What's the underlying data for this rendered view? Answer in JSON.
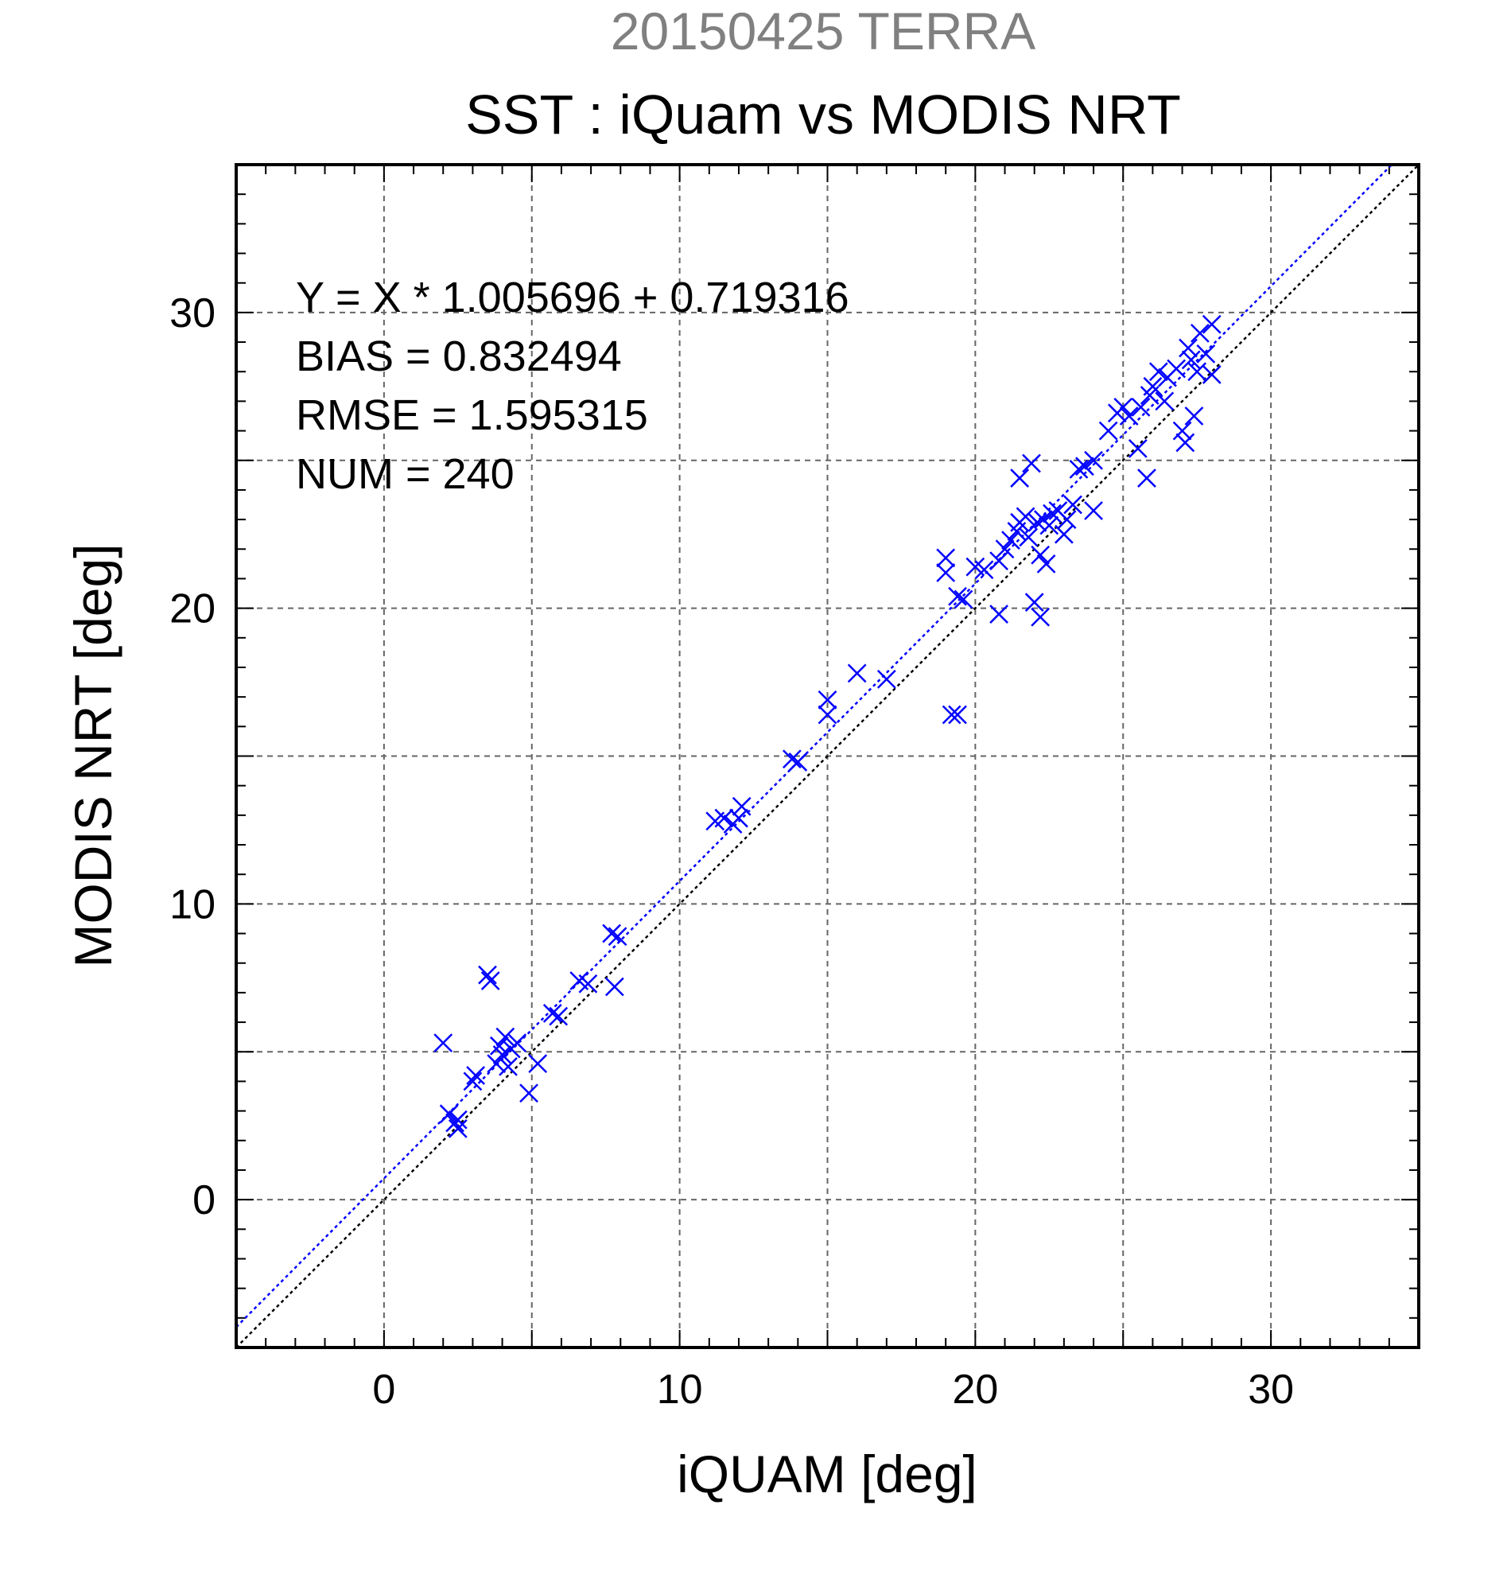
{
  "chart_data": {
    "type": "scatter",
    "title_top": "20150425 TERRA",
    "title": "SST : iQuam vs MODIS NRT",
    "xlabel": "iQUAM [deg]",
    "ylabel": "MODIS NRT [deg]",
    "xlim": [
      -5,
      35
    ],
    "ylim": [
      -5,
      35
    ],
    "xticks": [
      "0",
      "10",
      "20",
      "30"
    ],
    "yticks": [
      "0",
      "10",
      "20",
      "30"
    ],
    "grid": true,
    "annotations": [
      "Y = X * 1.005696 + 0.719316",
      "BIAS = 0.832494",
      "RMSE = 1.595315",
      "NUM = 240"
    ],
    "fit_line": {
      "slope": 1.005696,
      "intercept": 0.719316,
      "color": "#0000ff"
    },
    "identity_line": {
      "slope": 1,
      "intercept": 0,
      "color": "#000000"
    },
    "series": [
      {
        "marker": "x",
        "color": "#0000ff",
        "points": [
          [
            2.0,
            5.3
          ],
          [
            2.2,
            2.9
          ],
          [
            2.4,
            2.6
          ],
          [
            2.5,
            2.4
          ],
          [
            2.5,
            2.7
          ],
          [
            3.0,
            4.0
          ],
          [
            3.1,
            4.2
          ],
          [
            3.5,
            7.6
          ],
          [
            3.6,
            7.4
          ],
          [
            3.8,
            4.6
          ],
          [
            3.9,
            5.2
          ],
          [
            4.0,
            4.9
          ],
          [
            4.1,
            5.5
          ],
          [
            4.2,
            4.5
          ],
          [
            4.3,
            5.1
          ],
          [
            4.5,
            5.3
          ],
          [
            4.9,
            3.6
          ],
          [
            5.2,
            4.6
          ],
          [
            5.7,
            6.3
          ],
          [
            5.9,
            6.2
          ],
          [
            6.6,
            7.4
          ],
          [
            6.9,
            7.3
          ],
          [
            7.7,
            9.0
          ],
          [
            7.8,
            7.2
          ],
          [
            7.9,
            8.9
          ],
          [
            11.2,
            12.8
          ],
          [
            11.5,
            12.9
          ],
          [
            11.8,
            12.7
          ],
          [
            12.0,
            12.9
          ],
          [
            12.1,
            13.3
          ],
          [
            13.8,
            14.9
          ],
          [
            14.0,
            14.8
          ],
          [
            15.0,
            16.9
          ],
          [
            15.0,
            16.4
          ],
          [
            16.0,
            17.8
          ],
          [
            17.0,
            17.6
          ],
          [
            19.0,
            21.7
          ],
          [
            19.0,
            21.2
          ],
          [
            19.2,
            16.4
          ],
          [
            19.4,
            16.4
          ],
          [
            19.4,
            20.4
          ],
          [
            19.6,
            20.3
          ],
          [
            20.0,
            21.4
          ],
          [
            20.3,
            21.3
          ],
          [
            20.8,
            19.8
          ],
          [
            20.8,
            21.6
          ],
          [
            21.0,
            22.0
          ],
          [
            21.2,
            22.3
          ],
          [
            21.4,
            22.6
          ],
          [
            21.5,
            22.9
          ],
          [
            21.5,
            24.4
          ],
          [
            21.7,
            23.1
          ],
          [
            21.8,
            22.4
          ],
          [
            21.9,
            24.9
          ],
          [
            22.0,
            20.2
          ],
          [
            22.1,
            22.9
          ],
          [
            22.2,
            19.7
          ],
          [
            22.2,
            21.8
          ],
          [
            22.3,
            23.0
          ],
          [
            22.4,
            21.5
          ],
          [
            22.5,
            22.8
          ],
          [
            22.6,
            23.2
          ],
          [
            22.8,
            23.3
          ],
          [
            23.0,
            22.5
          ],
          [
            23.1,
            23.0
          ],
          [
            23.3,
            23.5
          ],
          [
            23.5,
            24.7
          ],
          [
            23.7,
            24.8
          ],
          [
            24.0,
            25.0
          ],
          [
            24.0,
            23.3
          ],
          [
            24.5,
            26.0
          ],
          [
            24.8,
            26.6
          ],
          [
            25.0,
            26.8
          ],
          [
            25.2,
            26.5
          ],
          [
            25.5,
            25.4
          ],
          [
            25.6,
            26.8
          ],
          [
            25.8,
            24.4
          ],
          [
            25.9,
            27.2
          ],
          [
            26.0,
            27.5
          ],
          [
            26.2,
            28.0
          ],
          [
            26.4,
            27.0
          ],
          [
            26.5,
            27.8
          ],
          [
            26.8,
            28.1
          ],
          [
            27.0,
            26.0
          ],
          [
            27.1,
            25.6
          ],
          [
            27.2,
            28.8
          ],
          [
            27.3,
            28.4
          ],
          [
            27.4,
            26.5
          ],
          [
            27.5,
            28.0
          ],
          [
            27.6,
            29.3
          ],
          [
            27.8,
            28.6
          ],
          [
            28.0,
            29.6
          ],
          [
            28.0,
            27.9
          ]
        ]
      }
    ]
  }
}
